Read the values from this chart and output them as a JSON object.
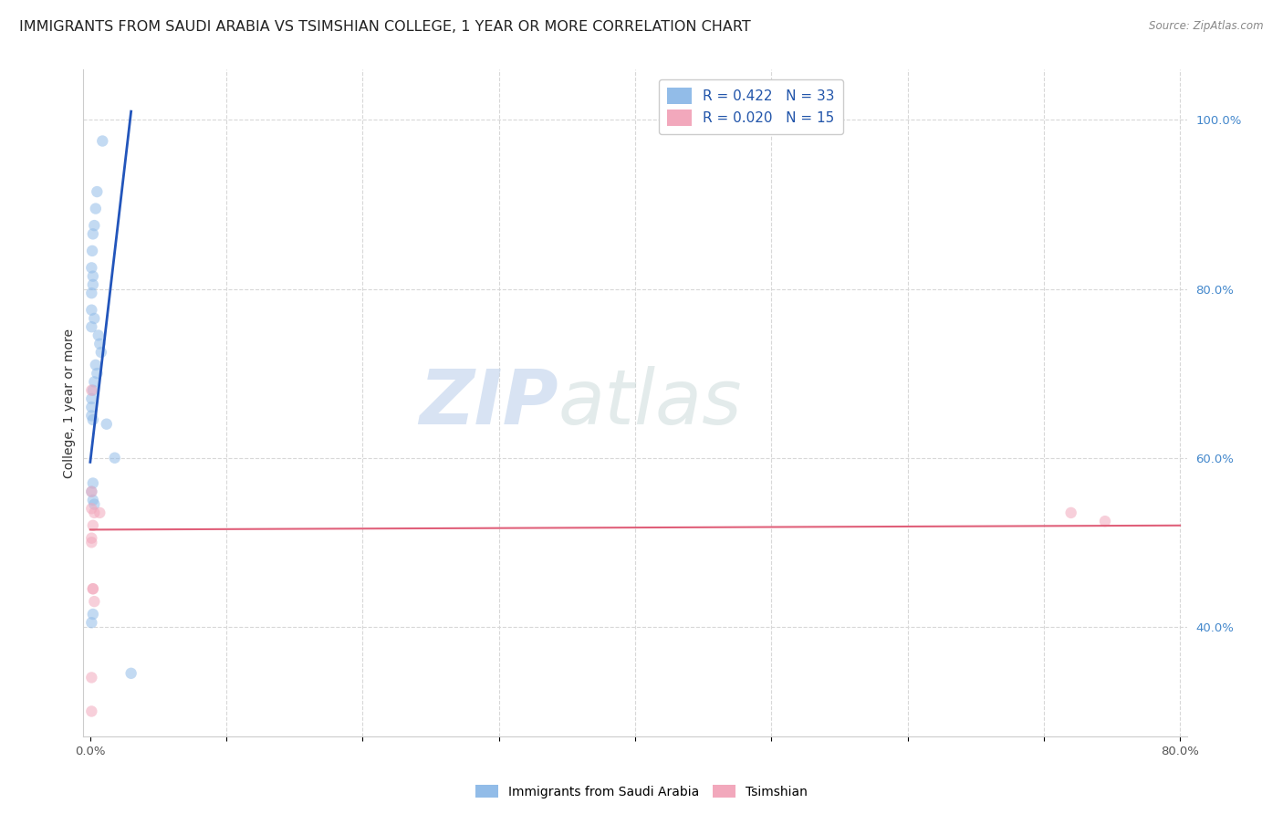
{
  "title": "IMMIGRANTS FROM SAUDI ARABIA VS TSIMSHIAN COLLEGE, 1 YEAR OR MORE CORRELATION CHART",
  "source": "Source: ZipAtlas.com",
  "ylabel": "College, 1 year or more",
  "xlim": [
    -0.005,
    0.805
  ],
  "ylim": [
    0.27,
    1.06
  ],
  "xtick_positions": [
    0.0,
    0.1,
    0.2,
    0.3,
    0.4,
    0.5,
    0.6,
    0.7,
    0.8
  ],
  "xticklabels": [
    "0.0%",
    "",
    "",
    "",
    "",
    "",
    "",
    "",
    "80.0%"
  ],
  "ytick_positions": [
    0.4,
    0.6,
    0.8,
    1.0
  ],
  "yticklabels_right": [
    "40.0%",
    "60.0%",
    "80.0%",
    "100.0%"
  ],
  "blue_scatter_x": [
    0.009,
    0.005,
    0.004,
    0.003,
    0.002,
    0.0015,
    0.001,
    0.002,
    0.002,
    0.001,
    0.001,
    0.003,
    0.001,
    0.006,
    0.007,
    0.008,
    0.004,
    0.005,
    0.003,
    0.002,
    0.001,
    0.001,
    0.001,
    0.002,
    0.012,
    0.018,
    0.002,
    0.001,
    0.002,
    0.003,
    0.002,
    0.001,
    0.03
  ],
  "blue_scatter_y": [
    0.975,
    0.915,
    0.895,
    0.875,
    0.865,
    0.845,
    0.825,
    0.815,
    0.805,
    0.795,
    0.775,
    0.765,
    0.755,
    0.745,
    0.735,
    0.725,
    0.71,
    0.7,
    0.69,
    0.68,
    0.67,
    0.66,
    0.65,
    0.645,
    0.64,
    0.6,
    0.57,
    0.56,
    0.55,
    0.545,
    0.415,
    0.405,
    0.345
  ],
  "pink_scatter_x": [
    0.001,
    0.001,
    0.001,
    0.003,
    0.007,
    0.002,
    0.001,
    0.001,
    0.002,
    0.002,
    0.003,
    0.001,
    0.001,
    0.72,
    0.745
  ],
  "pink_scatter_y": [
    0.68,
    0.56,
    0.54,
    0.535,
    0.535,
    0.52,
    0.505,
    0.5,
    0.445,
    0.445,
    0.43,
    0.34,
    0.3,
    0.535,
    0.525
  ],
  "blue_line_x": [
    0.0,
    0.03
  ],
  "blue_line_y": [
    0.595,
    1.01
  ],
  "pink_line_x": [
    0.0,
    0.8
  ],
  "pink_line_y": [
    0.515,
    0.52
  ],
  "legend_label_blue": "R = 0.422   N = 33",
  "legend_label_pink": "R = 0.020   N = 15",
  "legend_label_blue2": "Immigrants from Saudi Arabia",
  "legend_label_pink2": "Tsimshian",
  "blue_color": "#92bce8",
  "pink_color": "#f2a8bc",
  "blue_line_color": "#2255bb",
  "pink_line_color": "#e0607a",
  "watermark_zip": "ZIP",
  "watermark_atlas": "atlas",
  "background_color": "#ffffff",
  "grid_color": "#d8d8d8",
  "title_fontsize": 11.5,
  "axis_label_fontsize": 10,
  "tick_fontsize": 9.5,
  "legend_fontsize": 11,
  "scatter_size": 80,
  "scatter_alpha": 0.55
}
